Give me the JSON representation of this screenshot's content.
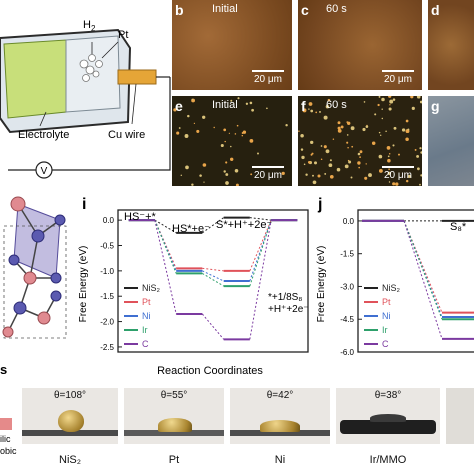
{
  "cell": {
    "h2_label": "H",
    "h2_sub": "2",
    "pt_label": "Pt",
    "electrolyte_label": "Electrolyte",
    "cu_wire_label": "Cu wire",
    "voltmeter_symbol": "V"
  },
  "micrographs": [
    {
      "letter": "b",
      "caption": "Initial",
      "scale": "20 μm",
      "tone": "brown"
    },
    {
      "letter": "c",
      "caption": "60 s",
      "scale": "20 μm",
      "tone": "brown"
    },
    {
      "letter": "d",
      "caption": "",
      "scale": "",
      "tone": "brown"
    },
    {
      "letter": "e",
      "caption": "Initial",
      "scale": "20 μm",
      "tone": "dark"
    },
    {
      "letter": "f",
      "caption": "60 s",
      "scale": "20 μm",
      "tone": "dark"
    },
    {
      "letter": "g",
      "caption": "",
      "scale": "",
      "tone": "grey"
    }
  ],
  "panel_i": {
    "letter": "i",
    "ylabel": "Free Energy (eV)",
    "xlabel": "Reaction Coordinates",
    "y_ticks": [
      "0.0",
      "-0.5",
      "-1.0",
      "-1.5",
      "-2.0",
      "-2.5"
    ],
    "state_labels": {
      "s1": "HS⁻+*",
      "s2": "HS*+e⁻",
      "s3": "S*+H⁺+2e⁻",
      "s4a": "*+1/8S₈",
      "s4b": "+H⁺+2e⁻"
    },
    "legend": [
      "NiS₂",
      "Pt",
      "Ni",
      "Ir",
      "C"
    ]
  },
  "panel_j": {
    "letter": "j",
    "ylabel": "Free Energy (eV)",
    "y_ticks": [
      "0.0",
      "-1.5",
      "-3.0",
      "-4.5",
      "-6.0"
    ],
    "state_label": "S₈*",
    "legend": [
      "NiS₂",
      "Pt",
      "Ni",
      "Ir",
      "C"
    ]
  },
  "colors": {
    "NiS2": "#222222",
    "Pt": "#e0525a",
    "Ni": "#3f6fd1",
    "Ir": "#2ea06b",
    "C": "#7b3aa0"
  },
  "chart_data": [
    {
      "type": "line",
      "title": "",
      "xlabel": "Reaction Coordinates",
      "ylabel": "Free Energy (eV)",
      "ylim": [
        -2.6,
        0.2
      ],
      "categories": [
        "HS⁻+*",
        "HS*+e⁻",
        "S*+H⁺+2e⁻",
        "*+1/8S₈+H⁺+2e⁻"
      ],
      "series": [
        {
          "name": "NiS₂",
          "values": [
            0.0,
            -0.25,
            0.05,
            0.0
          ]
        },
        {
          "name": "Pt",
          "values": [
            0.0,
            -0.95,
            -1.0,
            0.0
          ]
        },
        {
          "name": "Ni",
          "values": [
            0.0,
            -1.0,
            -1.2,
            0.0
          ]
        },
        {
          "name": "Ir",
          "values": [
            0.0,
            -1.05,
            -1.3,
            0.0
          ]
        },
        {
          "name": "C",
          "values": [
            0.0,
            -1.85,
            -2.35,
            0.0
          ]
        }
      ]
    },
    {
      "type": "line",
      "title": "",
      "xlabel": "",
      "ylabel": "Free Energy (eV)",
      "ylim": [
        -6.0,
        0.5
      ],
      "categories": [
        "",
        "S₈*"
      ],
      "series": [
        {
          "name": "NiS₂",
          "values": [
            0.0,
            0.0
          ]
        },
        {
          "name": "Pt",
          "values": [
            0.0,
            -4.2
          ]
        },
        {
          "name": "Ni",
          "values": [
            0.0,
            -4.4
          ]
        },
        {
          "name": "Ir",
          "values": [
            0.0,
            -4.5
          ]
        },
        {
          "name": "C",
          "values": [
            0.0,
            -5.4
          ]
        }
      ]
    }
  ],
  "drops": [
    {
      "theta": "θ=108°",
      "label": "NiS₂"
    },
    {
      "theta": "θ=55°",
      "label": "Pt"
    },
    {
      "theta": "θ=42°",
      "label": "Ni"
    },
    {
      "theta": "θ=38°",
      "label": "Ir/MMO"
    }
  ],
  "wetting_legend": {
    "top": "ilic",
    "bottom": "obic"
  },
  "panel_s_fragment": "s"
}
